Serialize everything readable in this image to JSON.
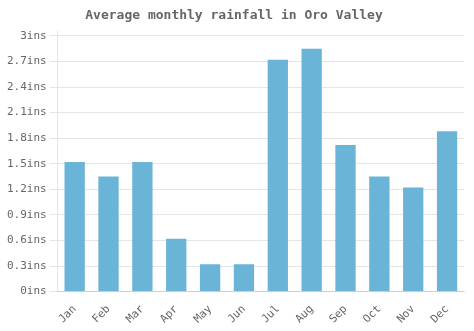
{
  "chart_data": {
    "type": "bar",
    "title": "Average monthly rainfall in Oro Valley",
    "categories": [
      "Jan",
      "Feb",
      "Mar",
      "Apr",
      "May",
      "Jun",
      "Jul",
      "Aug",
      "Sep",
      "Oct",
      "Nov",
      "Dec"
    ],
    "values": [
      1.52,
      1.35,
      1.52,
      0.62,
      0.32,
      0.32,
      2.72,
      2.85,
      1.72,
      1.35,
      1.22,
      1.88
    ],
    "color": "#6ab4d8",
    "ylim": [
      0,
      3.05
    ],
    "yticks": [
      {
        "value": 0,
        "label": "0ins"
      },
      {
        "value": 0.3,
        "label": "0.3ins"
      },
      {
        "value": 0.6,
        "label": "0.6ins"
      },
      {
        "value": 0.9,
        "label": "0.9ins"
      },
      {
        "value": 1.2,
        "label": "1.2ins"
      },
      {
        "value": 1.5,
        "label": "1.5ins"
      },
      {
        "value": 1.8,
        "label": "1.8ins"
      },
      {
        "value": 2.1,
        "label": "2.1ins"
      },
      {
        "value": 2.4,
        "label": "2.4ins"
      },
      {
        "value": 2.7,
        "label": "2.7ins"
      },
      {
        "value": 3.0,
        "label": "3ins"
      }
    ],
    "grid": true
  }
}
